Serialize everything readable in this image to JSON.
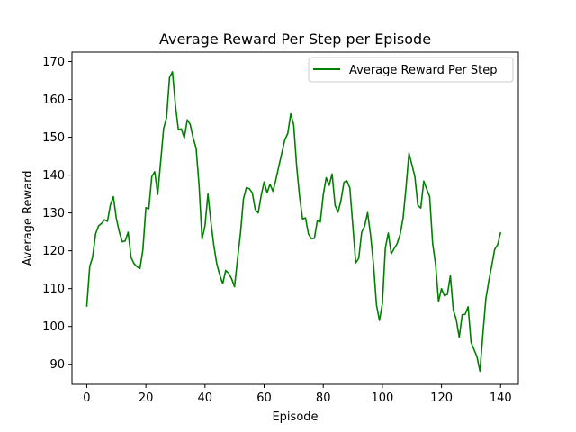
{
  "chart_data": {
    "type": "line",
    "title": "Average Reward Per Step per Episode",
    "xlabel": "Episode",
    "ylabel": "Average Reward",
    "xlim": [
      -5,
      146
    ],
    "ylim": [
      84.7,
      172.5
    ],
    "xticks": [
      0,
      20,
      40,
      60,
      80,
      100,
      120,
      140
    ],
    "yticks": [
      90,
      100,
      110,
      120,
      130,
      140,
      150,
      160,
      170
    ],
    "grid": false,
    "legend_position": "top-right",
    "series": [
      {
        "name": "Average Reward Per Step",
        "color": "#008000",
        "x": [
          0,
          1,
          2,
          3,
          4,
          5,
          6,
          7,
          8,
          9,
          10,
          11,
          12,
          13,
          14,
          15,
          16,
          17,
          18,
          19,
          20,
          21,
          22,
          23,
          24,
          25,
          26,
          27,
          28,
          29,
          30,
          31,
          32,
          33,
          34,
          35,
          36,
          37,
          38,
          39,
          40,
          41,
          42,
          43,
          44,
          45,
          46,
          47,
          48,
          49,
          50,
          51,
          52,
          53,
          54,
          55,
          56,
          57,
          58,
          59,
          60,
          61,
          62,
          63,
          64,
          65,
          66,
          67,
          68,
          69,
          70,
          71,
          72,
          73,
          74,
          75,
          76,
          77,
          78,
          79,
          80,
          81,
          82,
          83,
          84,
          85,
          86,
          87,
          88,
          89,
          90,
          91,
          92,
          93,
          94,
          95,
          96,
          97,
          98,
          99,
          100,
          101,
          102,
          103,
          104,
          105,
          106,
          107,
          108,
          109,
          110,
          111,
          112,
          113,
          114,
          115,
          116,
          117,
          118,
          119,
          120,
          121,
          122,
          123,
          124,
          125,
          126,
          127,
          128,
          129,
          130,
          131,
          132,
          133,
          134,
          135,
          136,
          137,
          138,
          139,
          140
        ],
        "values": [
          105.2,
          115.8,
          118.4,
          124.5,
          126.6,
          127.2,
          128.2,
          127.8,
          132.1,
          134.3,
          128.6,
          125.0,
          122.4,
          122.6,
          124.9,
          118.2,
          116.6,
          115.8,
          115.3,
          120.3,
          131.4,
          131.1,
          139.6,
          140.9,
          134.9,
          143.5,
          152.3,
          155.2,
          165.8,
          167.3,
          158.4,
          152.0,
          152.2,
          149.8,
          154.6,
          153.4,
          149.8,
          147.1,
          137.2,
          123.1,
          126.6,
          135.0,
          127.6,
          121.3,
          116.5,
          113.6,
          111.3,
          114.8,
          114.1,
          112.6,
          110.5,
          117.8,
          124.6,
          133.7,
          136.7,
          136.4,
          135.3,
          130.9,
          130.0,
          134.6,
          138.2,
          135.3,
          137.6,
          135.7,
          138.9,
          142.4,
          145.9,
          149.3,
          151.0,
          156.2,
          153.3,
          142.4,
          134.3,
          128.4,
          128.7,
          124.4,
          123.2,
          123.3,
          128.0,
          127.6,
          134.8,
          139.3,
          137.3,
          140.3,
          132.0,
          130.2,
          133.3,
          138.1,
          138.5,
          136.6,
          126.7,
          116.8,
          118.0,
          124.9,
          126.5,
          130.1,
          124.2,
          116.4,
          105.7,
          101.6,
          106.0,
          120.7,
          124.7,
          119.2,
          120.6,
          121.9,
          124.3,
          128.6,
          136.7,
          145.8,
          142.7,
          139.6,
          132.0,
          131.3,
          138.4,
          136.3,
          134.3,
          122.0,
          116.4,
          106.6,
          110.0,
          108.1,
          108.5,
          113.4,
          104.3,
          101.8,
          97.1,
          103.1,
          103.2,
          105.2,
          95.8,
          93.9,
          92.0,
          88.2,
          98.0,
          107.3,
          112.0,
          116.1,
          120.4,
          121.6,
          124.9
        ]
      }
    ]
  }
}
